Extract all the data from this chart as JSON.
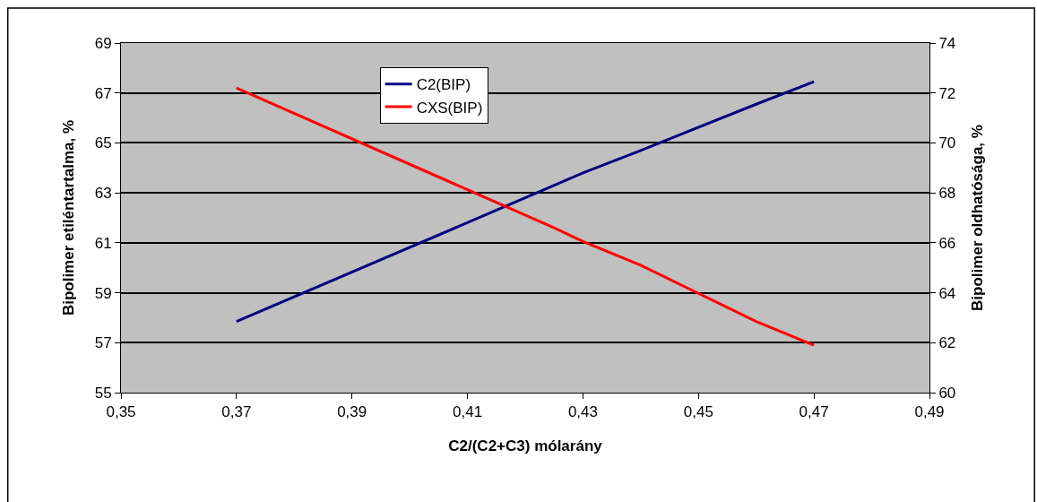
{
  "chart_data": {
    "type": "line",
    "xlabel": "C2/(C2+C3) mólarány",
    "ylabel": "Bipolimer etiléntartalma, %",
    "y2label": "Bipolimer oldhatósága, %",
    "xlim": [
      0.35,
      0.49
    ],
    "xticks": [
      {
        "value": 0.35,
        "label": "0,35"
      },
      {
        "value": 0.37,
        "label": "0,37"
      },
      {
        "value": 0.39,
        "label": "0,39"
      },
      {
        "value": 0.41,
        "label": "0,41"
      },
      {
        "value": 0.43,
        "label": "0,43"
      },
      {
        "value": 0.45,
        "label": "0,45"
      },
      {
        "value": 0.47,
        "label": "0,47"
      },
      {
        "value": 0.49,
        "label": "0,49"
      }
    ],
    "ylim": [
      55,
      69
    ],
    "yticks": [
      55,
      57,
      59,
      61,
      63,
      65,
      67,
      69
    ],
    "y2lim": [
      60,
      74
    ],
    "y2ticks": [
      60,
      62,
      64,
      66,
      68,
      70,
      72,
      74
    ],
    "grid": "y",
    "legend": "top",
    "line_style": "solid",
    "series": [
      {
        "name": "C2(BIP)",
        "color": "#000080",
        "x": [
          0.37,
          0.42,
          0.43,
          0.44,
          0.46,
          0.47
        ],
        "values": [
          57.85,
          62.8,
          63.8,
          64.7,
          66.55,
          67.45
        ]
      },
      {
        "name": "CXS(BIP)",
        "color": "#ff0000",
        "axis": "y2",
        "x": [
          0.37,
          0.425,
          0.43,
          0.44,
          0.46,
          0.47
        ],
        "values": [
          72.2,
          66.6,
          66.05,
          65.1,
          62.85,
          61.9
        ]
      }
    ]
  }
}
